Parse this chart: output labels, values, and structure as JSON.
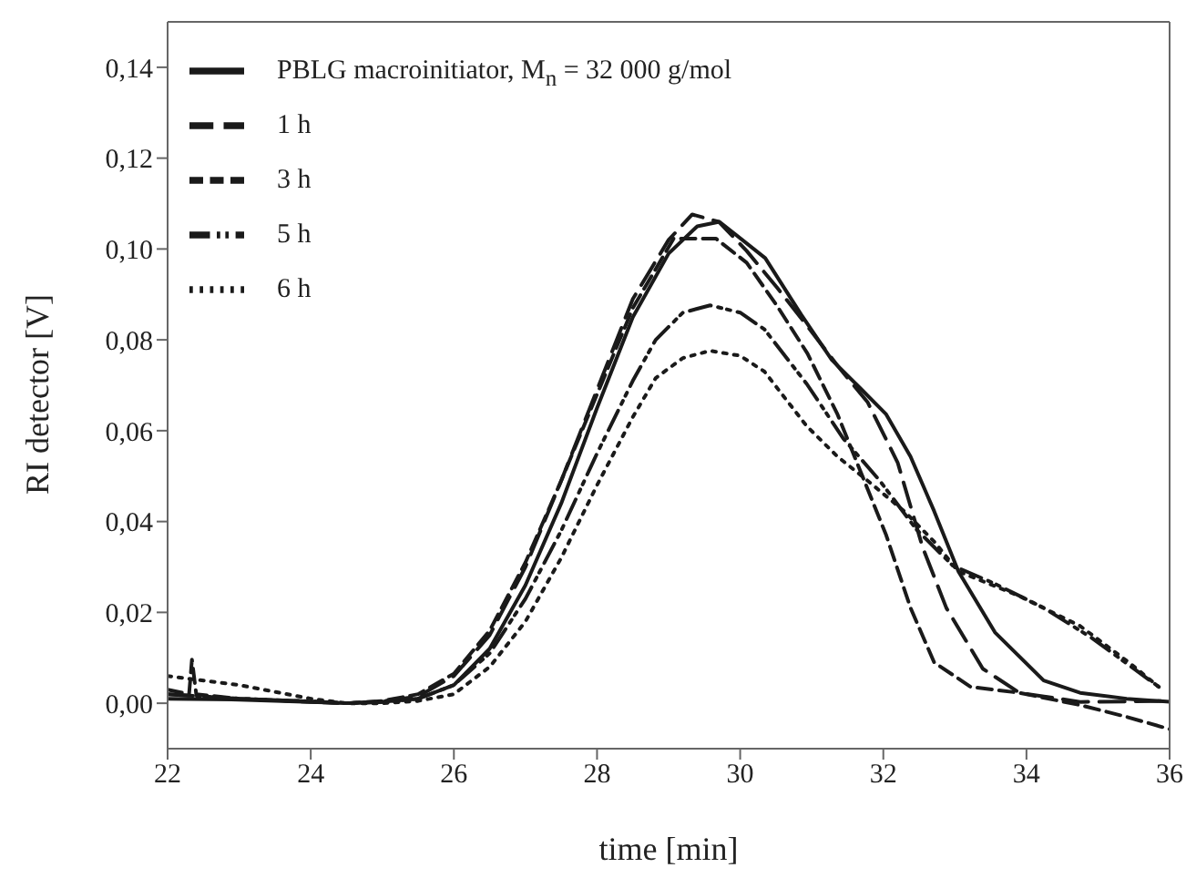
{
  "chart_data": {
    "type": "line",
    "xlabel": "time [min]",
    "ylabel": "RI detector [V]",
    "xlim": [
      22,
      36
    ],
    "xticks": [
      22,
      24,
      26,
      28,
      30,
      32,
      34,
      36
    ],
    "ylim": [
      -0.01,
      0.15
    ],
    "yticks": [
      {
        "value": 0,
        "label": "0,00"
      },
      {
        "value": 0.02,
        "label": "0,02"
      },
      {
        "value": 0.04,
        "label": "0,04"
      },
      {
        "value": 0.06,
        "label": "0,06"
      },
      {
        "value": 0.08,
        "label": "0,08"
      },
      {
        "value": 0.1,
        "label": "0,10"
      },
      {
        "value": 0.12,
        "label": "0,12"
      },
      {
        "value": 0.14,
        "label": "0,14"
      }
    ],
    "grid": false,
    "legend": "top left",
    "marker": "none",
    "series": [
      {
        "name": "PBLG macroinitiator, M$_{n}$ = 32 000 g/mol",
        "color": "#1a1a1a",
        "line_style": "solid",
        "x": [
          22,
          23,
          24,
          24.5,
          25,
          25.5,
          26,
          26.5,
          27,
          27.5,
          28,
          28.5,
          29,
          29.4,
          29.71,
          30.35,
          30.85,
          31.28,
          31.7,
          32.04,
          32.38,
          32.71,
          33.05,
          33.56,
          34.24,
          34.75,
          35.4,
          36
        ],
        "values": [
          0.001,
          0.0008,
          0.0003,
          0,
          0.0003,
          0.001,
          0.004,
          0.012,
          0.026,
          0.044,
          0.065,
          0.085,
          0.099,
          0.105,
          0.106,
          0.098,
          0.0856,
          0.0756,
          0.069,
          0.0636,
          0.0543,
          0.0423,
          0.029,
          0.0156,
          0.005,
          0.0023,
          0.001,
          0.0003
        ]
      },
      {
        "name": "1 h",
        "color": "#1a1a1a",
        "line_style": "dashed",
        "x": [
          22,
          23,
          24,
          24.5,
          25,
          25.5,
          26,
          26.5,
          27,
          27.5,
          28,
          28.5,
          29,
          29.33,
          29.7,
          30.09,
          30.51,
          30.94,
          31.36,
          31.78,
          32.2,
          32.55,
          32.88,
          33.39,
          33.9,
          34.75,
          36
        ],
        "values": [
          0.002,
          0.001,
          0.0004,
          0,
          0.0004,
          0.0015,
          0.006,
          0.015,
          0.03,
          0.049,
          0.069,
          0.089,
          0.102,
          0.1076,
          0.106,
          0.0996,
          0.0916,
          0.083,
          0.0743,
          0.0663,
          0.053,
          0.0343,
          0.021,
          0.0076,
          0.0023,
          0.0003,
          0.0005
        ]
      },
      {
        "name": "3 h",
        "color": "#1a1a1a",
        "line_style": "dashed",
        "x": [
          22,
          22.3,
          22.34,
          22.4,
          23,
          24,
          24.5,
          25,
          25.5,
          26,
          26.5,
          27,
          27.5,
          28,
          28.5,
          29.07,
          29.66,
          30.09,
          30.51,
          30.94,
          31.36,
          31.7,
          32.04,
          32.38,
          32.71,
          33.22,
          33.9,
          34.75,
          35.4,
          36
        ],
        "values": [
          0.003,
          0.002,
          0.0096,
          0.002,
          0.001,
          0.0003,
          0,
          0.0005,
          0.002,
          0.0065,
          0.016,
          0.031,
          0.049,
          0.068,
          0.087,
          0.1023,
          0.1023,
          0.097,
          0.0876,
          0.077,
          0.0636,
          0.0503,
          0.037,
          0.021,
          0.009,
          0.0036,
          0.0023,
          -0.0004,
          -0.003,
          -0.0057
        ]
      },
      {
        "name": "5 h",
        "color": "#1a1a1a",
        "line_style": "dashdot",
        "x": [
          22,
          23,
          24,
          24.5,
          25,
          25.5,
          26,
          26.5,
          27,
          27.5,
          28,
          28.5,
          28.82,
          29.2,
          29.58,
          30,
          30.34,
          30.93,
          31.44,
          31.95,
          32.46,
          32.97,
          33.56,
          34.24,
          34.92,
          35.5,
          35.85
        ],
        "values": [
          0.002,
          0.001,
          0.0004,
          0,
          0.0003,
          0.001,
          0.004,
          0.011,
          0.023,
          0.038,
          0.055,
          0.071,
          0.08,
          0.086,
          0.0876,
          0.086,
          0.0823,
          0.0703,
          0.0583,
          0.049,
          0.0383,
          0.0303,
          0.0263,
          0.021,
          0.0143,
          0.0076,
          0.0036
        ]
      },
      {
        "name": "6 h",
        "color": "#1a1a1a",
        "line_style": "dotted",
        "x": [
          22,
          23,
          24,
          24.5,
          25,
          25.5,
          26,
          26.5,
          27,
          27.5,
          28,
          28.5,
          28.82,
          29.2,
          29.58,
          30,
          30.34,
          30.93,
          31.36,
          31.78,
          32.29,
          32.71,
          33.05,
          33.9,
          34.75,
          35.43,
          35.85
        ],
        "values": [
          0.006,
          0.004,
          0.001,
          0,
          0,
          0.0005,
          0.002,
          0.008,
          0.018,
          0.032,
          0.048,
          0.063,
          0.0716,
          0.076,
          0.0776,
          0.0765,
          0.073,
          0.061,
          0.0543,
          0.049,
          0.0423,
          0.0356,
          0.029,
          0.0236,
          0.017,
          0.009,
          0.0036
        ]
      }
    ]
  }
}
